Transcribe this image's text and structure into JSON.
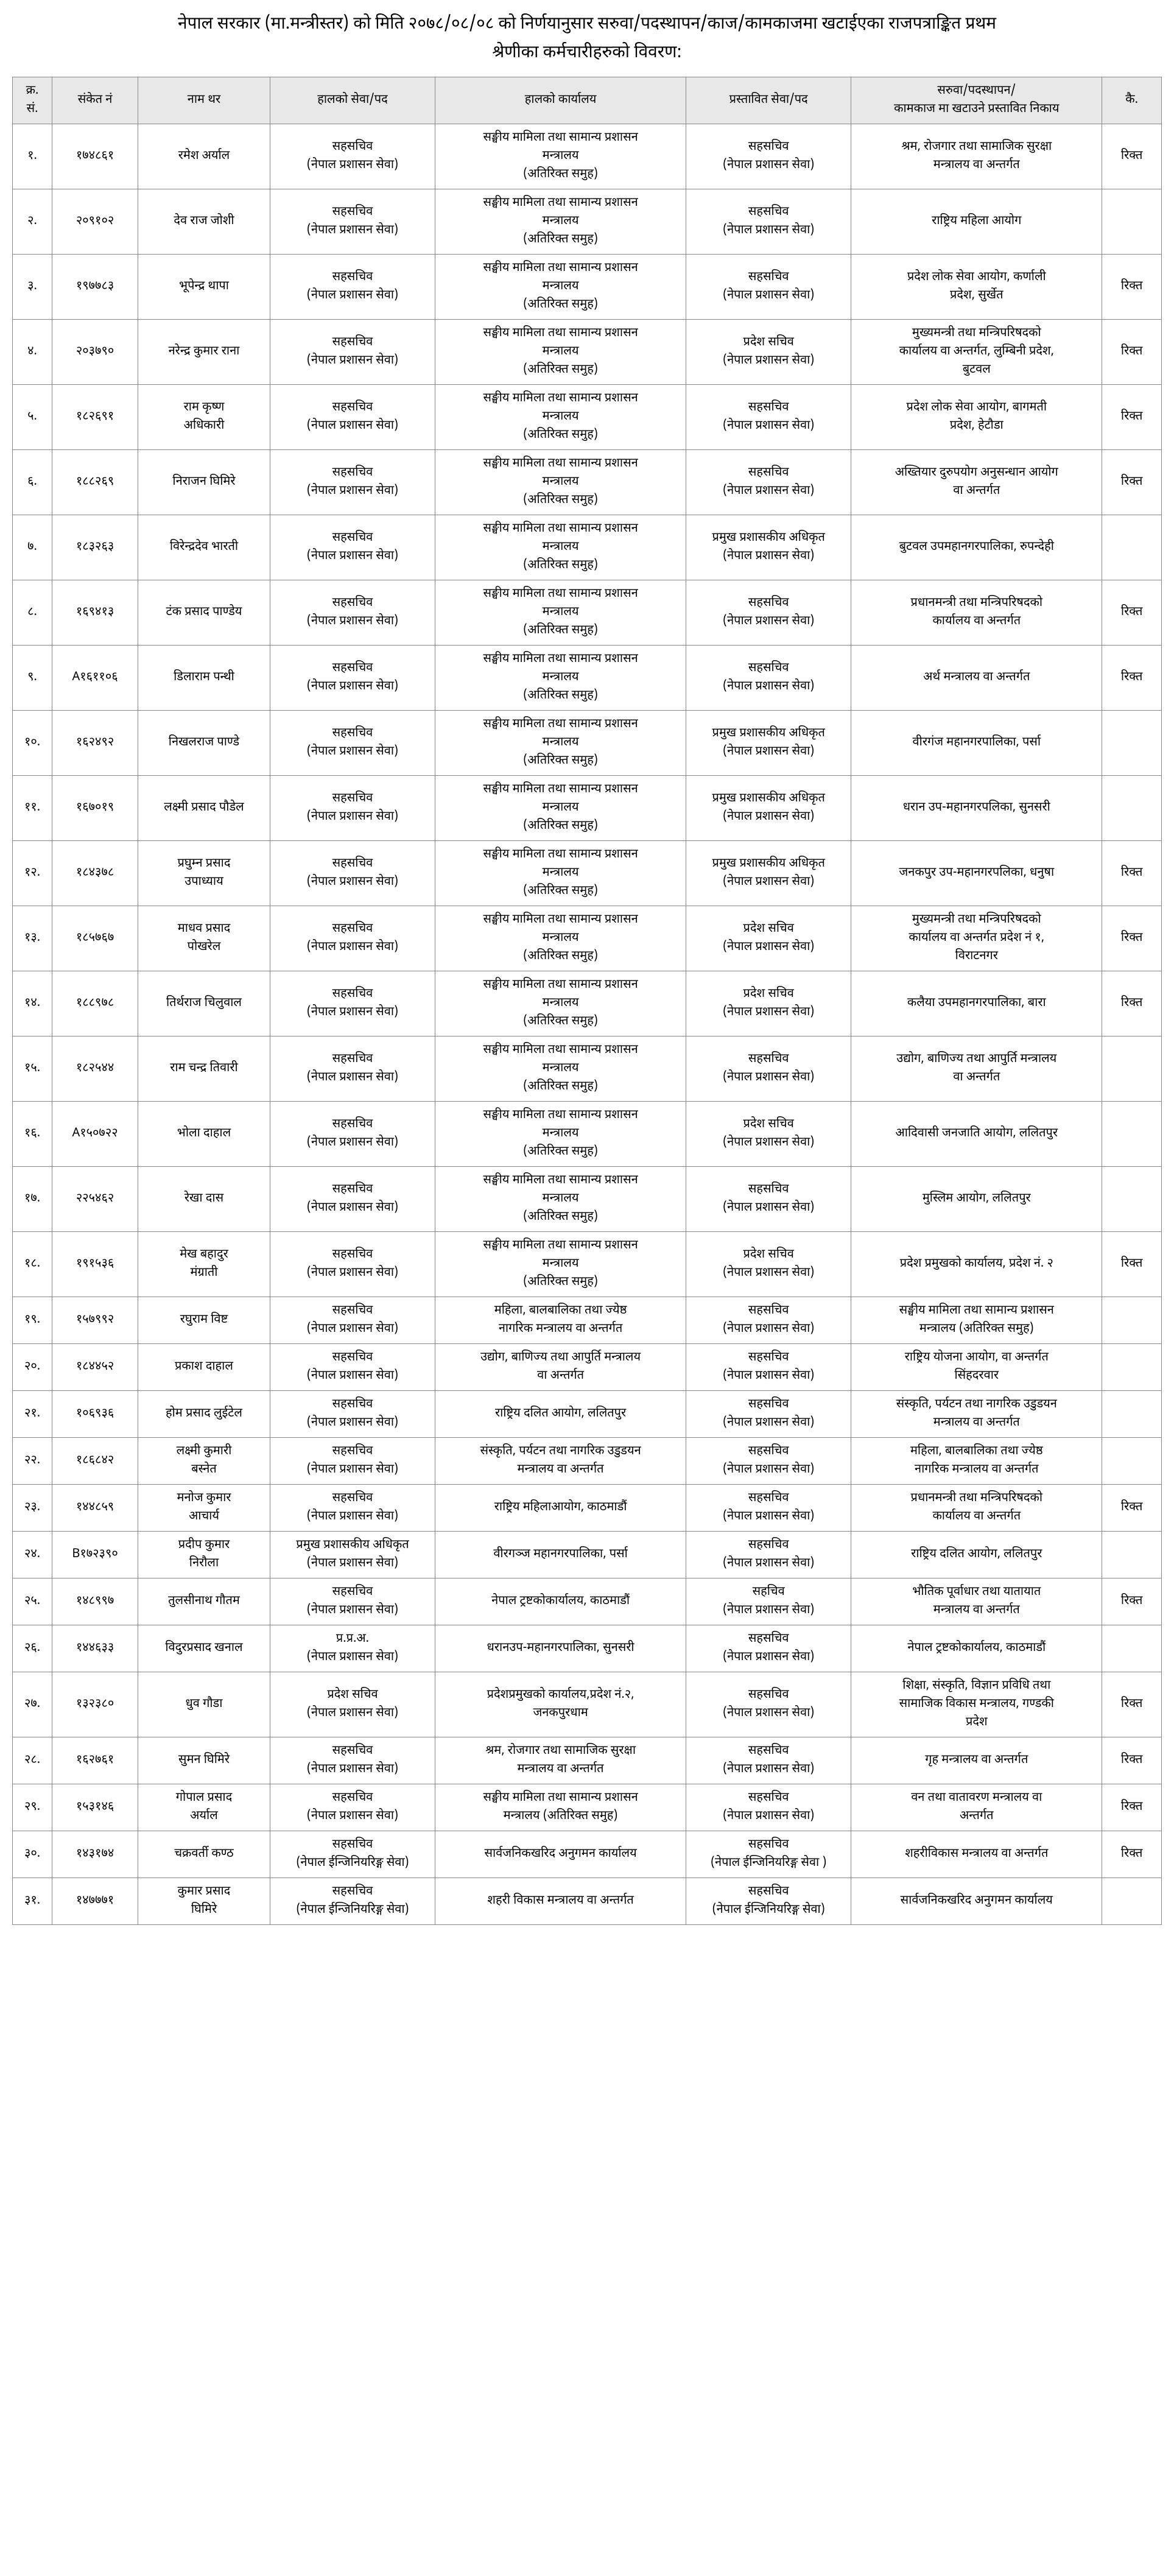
{
  "document": {
    "title": "नेपाल सरकार (मा.मन्त्रीस्तर) को मिति २०७८/०८/०८ को निर्णयानुसार सरुवा/पदस्थापन/काज/कामकाजमा खटाईएका राजपत्राङ्कित प्रथम",
    "subtitle": "श्रेणीका कर्मचारीहरुको विवरण:",
    "headers": {
      "sn": "क्र.\nसं.",
      "sanket": "संकेत नं",
      "name": "नाम थर",
      "current_post": "हालको सेवा/पद",
      "current_office": "हालको कार्यालय",
      "proposed_post": "प्रस्तावित सेवा/पद",
      "proposed_office": "सरुवा/पदस्थापन/\nकामकाज मा खटाउने प्रस्तावित निकाय",
      "remark": "कै."
    },
    "rows": [
      {
        "sn": "१.",
        "sanket": "१७४८६१",
        "name": "रमेश अर्याल",
        "current_post": "सहसचिव\n(नेपाल प्रशासन सेवा)",
        "current_office": "सङ्घीय मामिला तथा सामान्य प्रशासन\nमन्त्रालय\n(अतिरिक्त समुह)",
        "proposed_post": "सहसचिव\n(नेपाल प्रशासन सेवा)",
        "proposed_office": "श्रम, रोजगार तथा सामाजिक सुरक्षा\nमन्त्रालय वा अन्तर्गत",
        "remark": "रिक्त"
      },
      {
        "sn": "२.",
        "sanket": "२०९१०२",
        "name": "देव राज जोशी",
        "current_post": "सहसचिव\n(नेपाल प्रशासन सेवा)",
        "current_office": "सङ्घीय मामिला तथा सामान्य प्रशासन\nमन्त्रालय\n(अतिरिक्त समुह)",
        "proposed_post": "सहसचिव\n(नेपाल प्रशासन सेवा)",
        "proposed_office": "राष्ट्रिय महिला आयोग",
        "remark": ""
      },
      {
        "sn": "३.",
        "sanket": "१९७७८३",
        "name": "भूपेन्द्र थापा",
        "current_post": "सहसचिव\n(नेपाल प्रशासन सेवा)",
        "current_office": "सङ्घीय मामिला तथा सामान्य प्रशासन\nमन्त्रालय\n(अतिरिक्त समुह)",
        "proposed_post": "सहसचिव\n(नेपाल प्रशासन सेवा)",
        "proposed_office": "प्रदेश लोक सेवा आयोग, कर्णाली\nप्रदेश, सुर्खेत",
        "remark": "रिक्त"
      },
      {
        "sn": "४.",
        "sanket": "२०३७९०",
        "name": "नरेन्द्र कुमार राना",
        "current_post": "सहसचिव\n(नेपाल प्रशासन सेवा)",
        "current_office": "सङ्घीय मामिला तथा सामान्य प्रशासन\nमन्त्रालय\n(अतिरिक्त समुह)",
        "proposed_post": "प्रदेश सचिव\n(नेपाल प्रशासन सेवा)",
        "proposed_office": "मुख्यमन्त्री तथा मन्त्रिपरिषदको\nकार्यालय वा अन्तर्गत, लुम्बिनी प्रदेश,\nबुटवल",
        "remark": "रिक्त"
      },
      {
        "sn": "५.",
        "sanket": "१८२६९१",
        "name": "राम कृष्ण\nअधिकारी",
        "current_post": "सहसचिव\n(नेपाल प्रशासन सेवा)",
        "current_office": "सङ्घीय मामिला तथा सामान्य प्रशासन\nमन्त्रालय\n(अतिरिक्त समुह)",
        "proposed_post": "सहसचिव\n(नेपाल प्रशासन सेवा)",
        "proposed_office": "प्रदेश लोक सेवा आयोग, बागमती\nप्रदेश, हेटौडा",
        "remark": "रिक्त"
      },
      {
        "sn": "६.",
        "sanket": "१८८२६९",
        "name": "निराजन घिमिरे",
        "current_post": "सहसचिव\n(नेपाल प्रशासन सेवा)",
        "current_office": "सङ्घीय मामिला तथा सामान्य प्रशासन\nमन्त्रालय\n(अतिरिक्त समुह)",
        "proposed_post": "सहसचिव\n(नेपाल प्रशासन सेवा)",
        "proposed_office": "अख्तियार दुरुपयोग अनुसन्धान आयोग\nवा अन्तर्गत",
        "remark": "रिक्त"
      },
      {
        "sn": "७.",
        "sanket": "१८३२६३",
        "name": "विरेन्द्रदेव भारती",
        "current_post": "सहसचिव\n(नेपाल प्रशासन सेवा)",
        "current_office": "सङ्घीय मामिला तथा सामान्य प्रशासन\nमन्त्रालय\n(अतिरिक्त समुह)",
        "proposed_post": "प्रमुख प्रशासकीय अधिकृत\n(नेपाल प्रशासन सेवा)",
        "proposed_office": "बुटवल उपमहानगरपालिका, रुपन्देही",
        "remark": ""
      },
      {
        "sn": "८.",
        "sanket": "१६९४१३",
        "name": "टंक प्रसाद पाण्डेय",
        "current_post": "सहसचिव\n(नेपाल प्रशासन सेवा)",
        "current_office": "सङ्घीय मामिला तथा सामान्य प्रशासन\nमन्त्रालय\n(अतिरिक्त समुह)",
        "proposed_post": "सहसचिव\n(नेपाल प्रशासन सेवा)",
        "proposed_office": "प्रधानमन्त्री तथा मन्त्रिपरिषदको\nकार्यालय वा अन्तर्गत",
        "remark": "रिक्त"
      },
      {
        "sn": "९.",
        "sanket": "A१६११०६",
        "name": "डिलाराम पन्थी",
        "current_post": "सहसचिव\n(नेपाल प्रशासन सेवा)",
        "current_office": "सङ्घीय मामिला तथा सामान्य प्रशासन\nमन्त्रालय\n(अतिरिक्त समुह)",
        "proposed_post": "सहसचिव\n(नेपाल प्रशासन सेवा)",
        "proposed_office": "अर्थ मन्त्रालय वा अन्तर्गत",
        "remark": "रिक्त"
      },
      {
        "sn": "१०.",
        "sanket": "१६२४९२",
        "name": "निखलराज पाण्डे",
        "current_post": "सहसचिव\n(नेपाल प्रशासन सेवा)",
        "current_office": "सङ्घीय मामिला तथा सामान्य प्रशासन\nमन्त्रालय\n(अतिरिक्त समुह)",
        "proposed_post": "प्रमुख प्रशासकीय अधिकृत\n(नेपाल प्रशासन सेवा)",
        "proposed_office": "वीरगंज महानगरपालिका, पर्सा",
        "remark": ""
      },
      {
        "sn": "११.",
        "sanket": "१६७०१९",
        "name": "लक्ष्मी प्रसाद पौडेल",
        "current_post": "सहसचिव\n(नेपाल प्रशासन सेवा)",
        "current_office": "सङ्घीय मामिला तथा सामान्य प्रशासन\nमन्त्रालय\n(अतिरिक्त समुह)",
        "proposed_post": "प्रमुख प्रशासकीय अधिकृत\n(नेपाल प्रशासन सेवा)",
        "proposed_office": "धरान उप-महानगरपलिका, सुनसरी",
        "remark": ""
      },
      {
        "sn": "१२.",
        "sanket": "१८४३७८",
        "name": "प्रघुम्न प्रसाद\nउपाध्याय",
        "current_post": "सहसचिव\n(नेपाल प्रशासन सेवा)",
        "current_office": "सङ्घीय मामिला तथा सामान्य प्रशासन\nमन्त्रालय\n(अतिरिक्त समुह)",
        "proposed_post": "प्रमुख प्रशासकीय अधिकृत\n(नेपाल प्रशासन सेवा)",
        "proposed_office": "जनकपुर उप-महानगरपलिका, धनुषा",
        "remark": "रिक्त"
      },
      {
        "sn": "१३.",
        "sanket": "१८५७६७",
        "name": "माधव प्रसाद\nपोखरेल",
        "current_post": "सहसचिव\n(नेपाल प्रशासन सेवा)",
        "current_office": "सङ्घीय मामिला तथा सामान्य प्रशासन\nमन्त्रालय\n(अतिरिक्त समुह)",
        "proposed_post": "प्रदेश सचिव\n(नेपाल प्रशासन सेवा)",
        "proposed_office": "मुख्यमन्त्री तथा मन्त्रिपरिषदको\nकार्यालय वा अन्तर्गत प्रदेश नं १,\nविराटनगर",
        "remark": "रिक्त"
      },
      {
        "sn": "१४.",
        "sanket": "१८८९७८",
        "name": "तिर्थराज चिलुवाल",
        "current_post": "सहसचिव\n(नेपाल प्रशासन सेवा)",
        "current_office": "सङ्घीय मामिला तथा सामान्य प्रशासन\nमन्त्रालय\n(अतिरिक्त समुह)",
        "proposed_post": "प्रदेश सचिव\n(नेपाल प्रशासन सेवा)",
        "proposed_office": "कलैया उपमहानगरपालिका, बारा",
        "remark": "रिक्त"
      },
      {
        "sn": "१५.",
        "sanket": "१८२५४४",
        "name": "राम चन्द्र तिवारी",
        "current_post": "सहसचिव\n(नेपाल प्रशासन सेवा)",
        "current_office": "सङ्घीय मामिला तथा सामान्य प्रशासन\nमन्त्रालय\n(अतिरिक्त समुह)",
        "proposed_post": "सहसचिव\n(नेपाल प्रशासन सेवा)",
        "proposed_office": "उद्योग, बाणिज्य तथा आपुर्ति मन्त्रालय\nवा अन्तर्गत",
        "remark": ""
      },
      {
        "sn": "१६.",
        "sanket": "A१५०७२२",
        "name": "भोला दाहाल",
        "current_post": "सहसचिव\n(नेपाल प्रशासन सेवा)",
        "current_office": "सङ्घीय मामिला तथा सामान्य प्रशासन\nमन्त्रालय\n(अतिरिक्त समुह)",
        "proposed_post": "प्रदेश सचिव\n(नेपाल प्रशासन सेवा)",
        "proposed_office": "आदिवासी जनजाति आयोग, ललितपुर",
        "remark": ""
      },
      {
        "sn": "१७.",
        "sanket": "२२५४६२",
        "name": "रेखा दास",
        "current_post": "सहसचिव\n(नेपाल प्रशासन सेवा)",
        "current_office": "सङ्घीय मामिला तथा सामान्य प्रशासन\nमन्त्रालय\n(अतिरिक्त समुह)",
        "proposed_post": "सहसचिव\n(नेपाल प्रशासन सेवा)",
        "proposed_office": "मुस्लिम आयोग, ललितपुर",
        "remark": ""
      },
      {
        "sn": "१८.",
        "sanket": "१९१५३६",
        "name": "मेख बहादुर\nमंग्राती",
        "current_post": "सहसचिव\n(नेपाल प्रशासन सेवा)",
        "current_office": "सङ्घीय मामिला तथा सामान्य प्रशासन\nमन्त्रालय\n(अतिरिक्त समुह)",
        "proposed_post": "प्रदेश सचिव\n(नेपाल प्रशासन सेवा)",
        "proposed_office": "प्रदेश प्रमुखको कार्यालय, प्रदेश नं. २",
        "remark": "रिक्त"
      },
      {
        "sn": "१९.",
        "sanket": "१५७९९२",
        "name": "रघुराम विष्ट",
        "current_post": "सहसचिव\n(नेपाल प्रशासन सेवा)",
        "current_office": "महिला, बालबालिका तथा ज्येष्ठ\nनागरिक मन्त्रालय वा अन्तर्गत",
        "proposed_post": "सहसचिव\n(नेपाल प्रशासन सेवा)",
        "proposed_office": "सङ्घीय मामिला तथा सामान्य प्रशासन\nमन्त्रालय (अतिरिक्त समुह)",
        "remark": ""
      },
      {
        "sn": "२०.",
        "sanket": "१८४४५२",
        "name": "प्रकाश दाहाल",
        "current_post": "सहसचिव\n(नेपाल प्रशासन सेवा)",
        "current_office": "उद्योग, बाणिज्य तथा आपुर्ति मन्त्रालय\nवा अन्तर्गत",
        "proposed_post": "सहसचिव\n(नेपाल प्रशासन सेवा)",
        "proposed_office": "राष्ट्रिय योजना आयोग, वा अन्तर्गत\nसिंहदरवार",
        "remark": ""
      },
      {
        "sn": "२१.",
        "sanket": "१०६९३६",
        "name": "होम प्रसाद लुईटेल",
        "current_post": "सहसचिव\n(नेपाल प्रशासन सेवा)",
        "current_office": "राष्ट्रिय दलित आयोग, ललितपुर",
        "proposed_post": "सहसचिव\n(नेपाल प्रशासन सेवा)",
        "proposed_office": "संस्कृति, पर्यटन तथा नागरिक उडुडयन\nमन्त्रालय वा अन्तर्गत",
        "remark": ""
      },
      {
        "sn": "२२.",
        "sanket": "१८६८४२",
        "name": "लक्ष्मी कुमारी\nबस्नेत",
        "current_post": "सहसचिव\n(नेपाल प्रशासन सेवा)",
        "current_office": "संस्कृति, पर्यटन तथा नागरिक उडुडयन\nमन्त्रालय वा अन्तर्गत",
        "proposed_post": "सहसचिव\n(नेपाल प्रशासन सेवा)",
        "proposed_office": "महिला, बालबालिका तथा ज्येष्ठ\nनागरिक मन्त्रालय वा अन्तर्गत",
        "remark": ""
      },
      {
        "sn": "२३.",
        "sanket": "१४४८५९",
        "name": "मनोज कुमार\nआचार्य",
        "current_post": "सहसचिव\n(नेपाल प्रशासन सेवा)",
        "current_office": "राष्ट्रिय महिलाआयोग, काठमाडौं",
        "proposed_post": "सहसचिव\n(नेपाल प्रशासन सेवा)",
        "proposed_office": "प्रधानमन्त्री तथा मन्त्रिपरिषदको\nकार्यालय वा अन्तर्गत",
        "remark": "रिक्त"
      },
      {
        "sn": "२४.",
        "sanket": "B१७२३९०",
        "name": "प्रदीप कुमार\nनिरौला",
        "current_post": "प्रमुख प्रशासकीय अधिकृत\n(नेपाल प्रशासन सेवा)",
        "current_office": "वीरगञ्ज महानगरपालिका, पर्सा",
        "proposed_post": "सहसचिव\n(नेपाल प्रशासन सेवा)",
        "proposed_office": "राष्ट्रिय दलित आयोग, ललितपुर",
        "remark": ""
      },
      {
        "sn": "२५.",
        "sanket": "१४८९९७",
        "name": "तुलसीनाथ गौतम",
        "current_post": "सहसचिव\n(नेपाल प्रशासन सेवा)",
        "current_office": "नेपाल ट्रष्टकोकार्यालय, काठमाडौं",
        "proposed_post": "सहचिव\n(नेपाल प्रशासन सेवा)",
        "proposed_office": "भौतिक पूर्वाधार तथा यातायात\nमन्त्रालय वा अन्तर्गत",
        "remark": "रिक्त"
      },
      {
        "sn": "२६.",
        "sanket": "१४४६३३",
        "name": "विदुरप्रसाद खनाल",
        "current_post": "प्र.प्र.अ.\n(नेपाल प्रशासन सेवा)",
        "current_office": "धरानउप-महानगरपालिका, सुनसरी",
        "proposed_post": "सहसचिव\n(नेपाल प्रशासन सेवा)",
        "proposed_office": "नेपाल ट्रष्टकोकार्यालय, काठमाडौं",
        "remark": ""
      },
      {
        "sn": "२७.",
        "sanket": "१३२३८०",
        "name": "धुव गौडा",
        "current_post": "प्रदेश सचिव\n(नेपाल प्रशासन सेवा)",
        "current_office": "प्रदेशप्रमुखको कार्यालय,प्रदेश नं.२,\nजनकपुरधाम",
        "proposed_post": "सहसचिव\n(नेपाल प्रशासन सेवा)",
        "proposed_office": "शिक्षा, संस्कृति, विज्ञान प्रविधि तथा\nसामाजिक विकास मन्त्रालय, गण्डकी\nप्रदेश",
        "remark": "रिक्त"
      },
      {
        "sn": "२८.",
        "sanket": "१६२७६१",
        "name": "सुमन घिमिरे",
        "current_post": "सहसचिव\n(नेपाल प्रशासन सेवा)",
        "current_office": "श्रम, रोजगार तथा सामाजिक सुरक्षा\nमन्त्रालय वा अन्तर्गत",
        "proposed_post": "सहसचिव\n(नेपाल प्रशासन सेवा)",
        "proposed_office": "गृह मन्त्रालय वा अन्तर्गत",
        "remark": "रिक्त"
      },
      {
        "sn": "२९.",
        "sanket": "१५३१४६",
        "name": "गोपाल प्रसाद\nअर्याल",
        "current_post": "सहसचिव\n(नेपाल प्रशासन सेवा)",
        "current_office": "सङ्घीय मामिला तथा सामान्य प्रशासन\nमन्त्रालय (अतिरिक्त समुह)",
        "proposed_post": "सहसचिव\n(नेपाल प्रशासन सेवा)",
        "proposed_office": "वन तथा वातावरण मन्त्रालय वा\nअन्तर्गत",
        "remark": "रिक्त"
      },
      {
        "sn": "३०.",
        "sanket": "१४३१७४",
        "name": "चक्रवर्ती कण्ठ",
        "current_post": "सहसचिव\n(नेपाल ईन्जिनियरिङ्ग सेवा)",
        "current_office": "सार्वजनिकखरिद अनुगमन कार्यालय",
        "proposed_post": "सहसचिव\n(नेपाल ईन्जिनियरिङ्ग सेवा )",
        "proposed_office": "शहरीविकास मन्त्रालय वा अन्तर्गत",
        "remark": "रिक्त"
      },
      {
        "sn": "३१.",
        "sanket": "१४७७७१",
        "name": "कुमार प्रसाद\nघिमिरे",
        "current_post": "सहसचिव\n(नेपाल ईन्जिनियरिङ्ग सेवा)",
        "current_office": "शहरी विकास मन्त्रालय वा अन्तर्गत",
        "proposed_post": "सहसचिव\n(नेपाल ईन्जिनियरिङ्ग सेवा)",
        "proposed_office": "सार्वजनिकखरिद अनुगमन कार्यालय",
        "remark": ""
      }
    ],
    "styling": {
      "body_bg": "#ffffff",
      "text_color": "#000000",
      "border_color": "#888888",
      "header_bg": "#e8e8e8",
      "title_fontsize": 28,
      "cell_fontsize": 20,
      "header_fontsize": 20
    }
  }
}
